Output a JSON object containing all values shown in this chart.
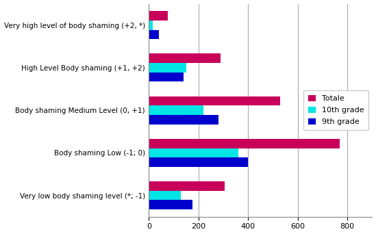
{
  "categories": [
    "Very high level of body shaming (+2, *)",
    "High Level Body shaming (+1, +2)",
    "Body shaming Medium Level (0, +1)",
    "Body shaming Low (-1; 0)",
    "Very low body shaming level (*; -1)"
  ],
  "series": {
    "Totale": [
      75,
      290,
      530,
      770,
      305
    ],
    "10th grade": [
      15,
      150,
      220,
      360,
      130
    ],
    "9th grade": [
      40,
      140,
      280,
      400,
      175
    ]
  },
  "colors": {
    "Totale": "#C8005A",
    "10th grade": "#00E5E5",
    "9th grade": "#0000CD"
  },
  "xlim": [
    0,
    900
  ],
  "xticks": [
    0,
    200,
    400,
    600,
    800
  ],
  "bar_height": 0.22,
  "figsize": [
    5.49,
    3.42
  ],
  "dpi": 100,
  "legend_labels": [
    "Totale",
    "10th grade",
    "9th grade"
  ],
  "grid_color": "#AAAAAA",
  "bg_color": "#FFFFFF",
  "label_fontsize": 7.5,
  "tick_fontsize": 8
}
